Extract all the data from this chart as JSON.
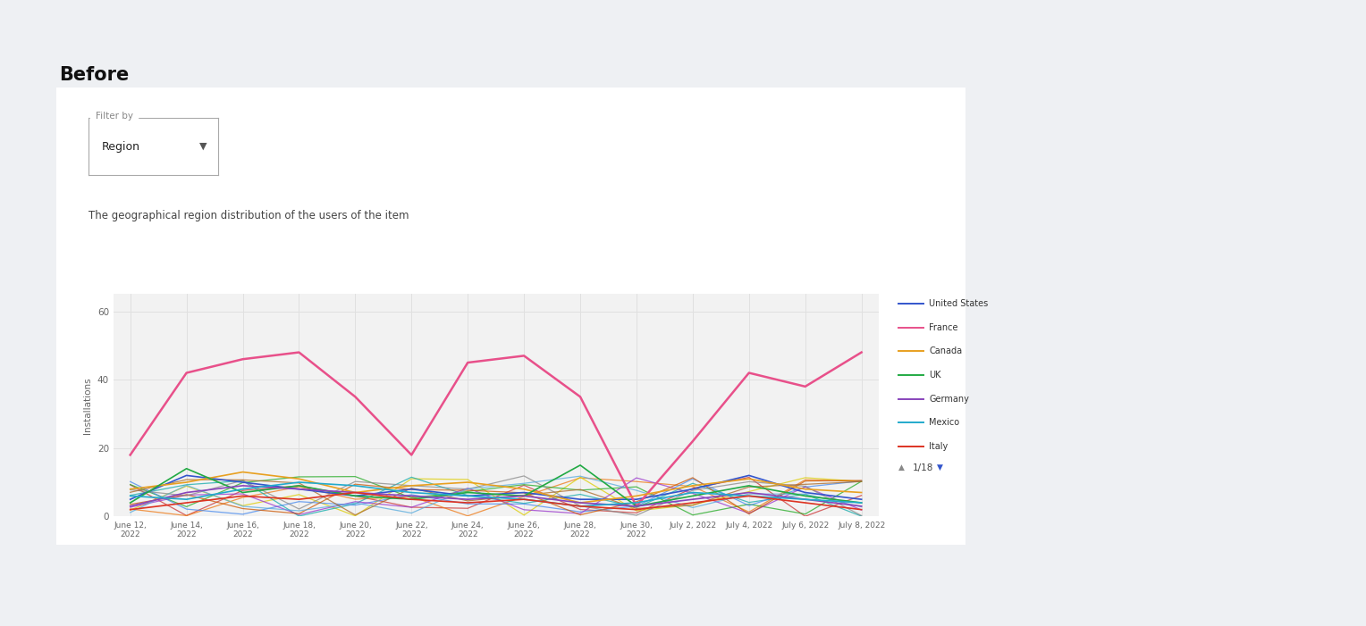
{
  "title": "Before",
  "subtitle": "The geographical region distribution of the users of the item",
  "ylabel": "Installations",
  "filter_label": "Filter by",
  "filter_value": "Region",
  "page_indicator": "1/18",
  "outer_bg": "#eef0f3",
  "card_color": "#ffffff",
  "plot_bg_color": "#f2f2f2",
  "grid_color": "#e0e0e0",
  "ylim": [
    0,
    65
  ],
  "yticks": [
    0,
    20,
    40,
    60
  ],
  "x_labels": [
    "June 12,\n2022",
    "June 14,\n2022",
    "June 16,\n2022",
    "June 18,\n2022",
    "June 20,\n2022",
    "June 22,\n2022",
    "June 24,\n2022",
    "June 26,\n2022",
    "June 28,\n2022",
    "June 30,\n2022",
    "July 2, 2022",
    "July 4, 2022",
    "July 6, 2022",
    "July 8, 2022"
  ],
  "n_points": 14,
  "legend_entries": [
    {
      "label": "United States",
      "color": "#3355cc"
    },
    {
      "label": "France",
      "color": "#e8508a"
    },
    {
      "label": "Canada",
      "color": "#e8a020"
    },
    {
      "label": "UK",
      "color": "#22aa44"
    },
    {
      "label": "Germany",
      "color": "#8844bb"
    },
    {
      "label": "Mexico",
      "color": "#22aacc"
    },
    {
      "label": "Italy",
      "color": "#dd3322"
    }
  ],
  "france_vals": [
    18,
    42,
    46,
    48,
    35,
    18,
    45,
    47,
    35,
    3,
    22,
    42,
    38,
    48
  ],
  "us_vals": [
    5,
    12,
    10,
    8,
    6,
    8,
    6,
    7,
    5,
    5,
    8,
    12,
    7,
    5
  ],
  "canada_vals": [
    8,
    10,
    13,
    11,
    7,
    9,
    10,
    8,
    4,
    6,
    9,
    11,
    8,
    7
  ],
  "uk_vals": [
    4,
    14,
    7,
    9,
    6,
    5,
    7,
    6,
    15,
    3,
    6,
    9,
    6,
    4
  ],
  "germany_vals": [
    3,
    7,
    9,
    8,
    7,
    6,
    5,
    6,
    4,
    3,
    5,
    7,
    5,
    3
  ],
  "mexico_vals": [
    6,
    5,
    8,
    10,
    9,
    7,
    6,
    5,
    3,
    4,
    7,
    6,
    5,
    4
  ],
  "italy_vals": [
    2,
    4,
    6,
    5,
    7,
    5,
    4,
    5,
    3,
    2,
    4,
    6,
    4,
    2
  ],
  "other_lines": [
    {
      "color": "#cc3333",
      "seed": 10
    },
    {
      "color": "#ee7711",
      "seed": 11
    },
    {
      "color": "#ddcc00",
      "seed": 12
    },
    {
      "color": "#22aa22",
      "seed": 13
    },
    {
      "color": "#11aaaa",
      "seed": 14
    },
    {
      "color": "#4488ee",
      "seed": 15
    },
    {
      "color": "#9933cc",
      "seed": 16
    },
    {
      "color": "#cc5500",
      "seed": 17
    },
    {
      "color": "#888888",
      "seed": 18
    },
    {
      "color": "#55aadd",
      "seed": 19
    },
    {
      "color": "#aa6622",
      "seed": 20
    }
  ]
}
